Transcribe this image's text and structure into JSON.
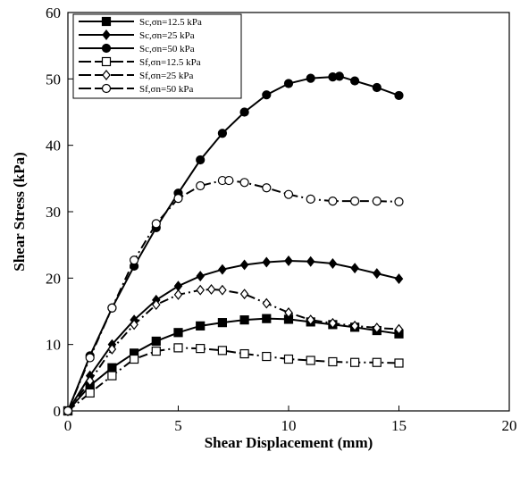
{
  "chart_data": {
    "type": "line",
    "xlabel": "Shear Displacement (mm)",
    "ylabel": "Shear Stress (kPa)",
    "xlim": [
      0,
      20
    ],
    "ylim": [
      0,
      60
    ],
    "xticks": [
      "0",
      "5",
      "10",
      "15",
      "20"
    ],
    "yticks": [
      "0",
      "10",
      "20",
      "30",
      "40",
      "50",
      "60"
    ],
    "grid": false,
    "legend_position": "top-left",
    "series": [
      {
        "name": "Sc,σn=12.5 kPa",
        "marker": "square",
        "fill": "#000000",
        "line": "solid",
        "points": [
          [
            0,
            0
          ],
          [
            1,
            3.8
          ],
          [
            2,
            6.5
          ],
          [
            3,
            8.7
          ],
          [
            4,
            10.5
          ],
          [
            5,
            11.8
          ],
          [
            6,
            12.8
          ],
          [
            7,
            13.3
          ],
          [
            8,
            13.7
          ],
          [
            9,
            13.9
          ],
          [
            10,
            13.8
          ],
          [
            11,
            13.4
          ],
          [
            12,
            13.0
          ],
          [
            13,
            12.6
          ],
          [
            14,
            12.1
          ],
          [
            15,
            11.6
          ]
        ]
      },
      {
        "name": "Sc,σn=25 kPa",
        "marker": "diamond",
        "fill": "#000000",
        "line": "solid",
        "points": [
          [
            0,
            0
          ],
          [
            1,
            5.3
          ],
          [
            2,
            10.0
          ],
          [
            3,
            13.7
          ],
          [
            4,
            16.7
          ],
          [
            5,
            18.8
          ],
          [
            6,
            20.3
          ],
          [
            7,
            21.3
          ],
          [
            8,
            22.0
          ],
          [
            9,
            22.4
          ],
          [
            10,
            22.6
          ],
          [
            11,
            22.5
          ],
          [
            12,
            22.2
          ],
          [
            13,
            21.5
          ],
          [
            14,
            20.7
          ],
          [
            15,
            19.9
          ]
        ]
      },
      {
        "name": "Sc,σn=50 kPa",
        "marker": "circle",
        "fill": "#000000",
        "line": "solid",
        "points": [
          [
            0,
            0
          ],
          [
            1,
            8.3
          ],
          [
            2,
            15.5
          ],
          [
            3,
            21.8
          ],
          [
            4,
            27.6
          ],
          [
            5,
            32.8
          ],
          [
            6,
            37.8
          ],
          [
            7,
            41.8
          ],
          [
            8,
            45.0
          ],
          [
            9,
            47.6
          ],
          [
            10,
            49.3
          ],
          [
            11,
            50.1
          ],
          [
            12,
            50.3
          ],
          [
            12.3,
            50.4
          ],
          [
            13,
            49.7
          ],
          [
            14,
            48.7
          ],
          [
            15,
            47.5
          ]
        ]
      },
      {
        "name": "Sf,σn=12.5 kPa",
        "marker": "square",
        "fill": "#ffffff",
        "line": "dashed",
        "points": [
          [
            0,
            0
          ],
          [
            1,
            2.7
          ],
          [
            2,
            5.3
          ],
          [
            3,
            7.8
          ],
          [
            4,
            9.0
          ],
          [
            5,
            9.5
          ],
          [
            6,
            9.4
          ],
          [
            7,
            9.1
          ],
          [
            8,
            8.6
          ],
          [
            9,
            8.2
          ],
          [
            10,
            7.8
          ],
          [
            11,
            7.6
          ],
          [
            12,
            7.4
          ],
          [
            13,
            7.3
          ],
          [
            14,
            7.3
          ],
          [
            15,
            7.2
          ]
        ]
      },
      {
        "name": "Sf,σn=25 kPa",
        "marker": "diamond",
        "fill": "#ffffff",
        "line": "dashed",
        "points": [
          [
            0,
            0
          ],
          [
            1,
            4.5
          ],
          [
            2,
            9.3
          ],
          [
            3,
            13.0
          ],
          [
            4,
            16.0
          ],
          [
            5,
            17.5
          ],
          [
            6,
            18.2
          ],
          [
            6.5,
            18.3
          ],
          [
            7,
            18.2
          ],
          [
            8,
            17.6
          ],
          [
            9,
            16.2
          ],
          [
            10,
            14.8
          ],
          [
            11,
            13.7
          ],
          [
            12,
            13.2
          ],
          [
            13,
            12.8
          ],
          [
            14,
            12.5
          ],
          [
            15,
            12.3
          ]
        ]
      },
      {
        "name": "Sf,σn=50 kPa",
        "marker": "circle",
        "fill": "#ffffff",
        "line": "dashed",
        "points": [
          [
            0,
            0
          ],
          [
            1,
            8.0
          ],
          [
            2,
            15.5
          ],
          [
            3,
            22.7
          ],
          [
            4,
            28.2
          ],
          [
            5,
            32.0
          ],
          [
            6,
            33.9
          ],
          [
            7,
            34.7
          ],
          [
            7.3,
            34.7
          ],
          [
            8,
            34.4
          ],
          [
            9,
            33.6
          ],
          [
            10,
            32.6
          ],
          [
            11,
            31.9
          ],
          [
            12,
            31.6
          ],
          [
            13,
            31.6
          ],
          [
            14,
            31.6
          ],
          [
            15,
            31.5
          ]
        ]
      }
    ]
  }
}
